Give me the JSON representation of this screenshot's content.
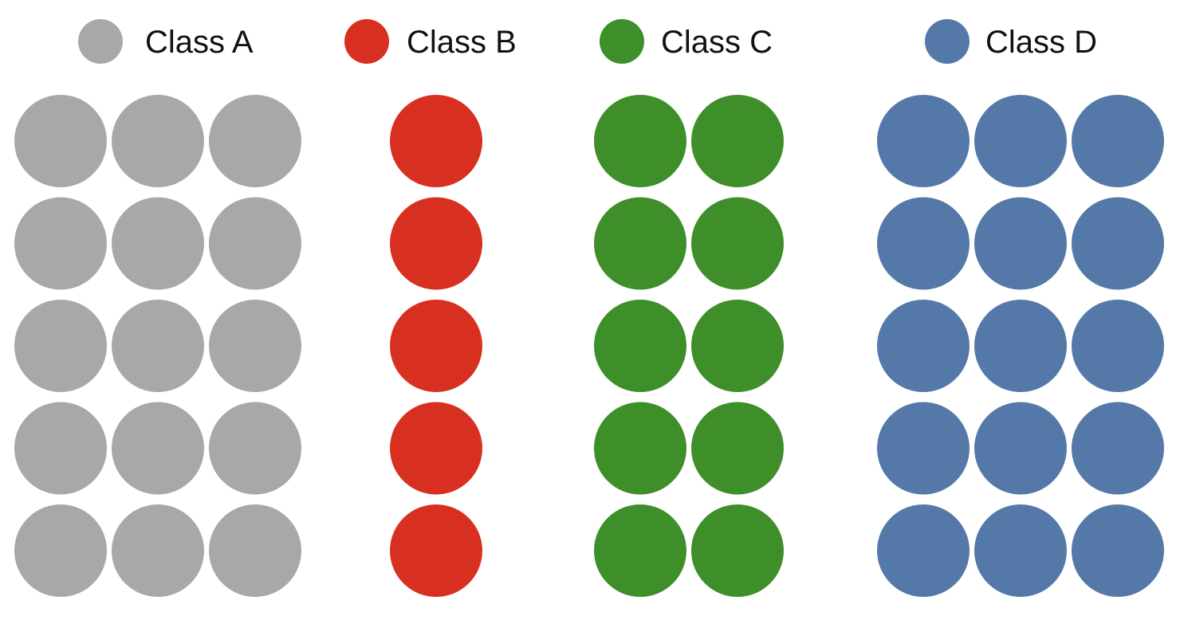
{
  "legend": [
    {
      "label": "Class A",
      "color": "#A8A8AA"
    },
    {
      "label": "Class B",
      "color": "#D83020"
    },
    {
      "label": "Class C",
      "color": "#3E8E2A"
    },
    {
      "label": "Class D",
      "color": "#5479A8"
    }
  ],
  "groups": [
    {
      "class": "Class A",
      "color": "#A8A8AA",
      "columns": 3,
      "rows": 5
    },
    {
      "class": "Class B",
      "color": "#D83020",
      "columns": 1,
      "rows": 5
    },
    {
      "class": "Class C",
      "color": "#3E8E2A",
      "columns": 2,
      "rows": 5
    },
    {
      "class": "Class D",
      "color": "#5479A8",
      "columns": 3,
      "rows": 5
    }
  ]
}
